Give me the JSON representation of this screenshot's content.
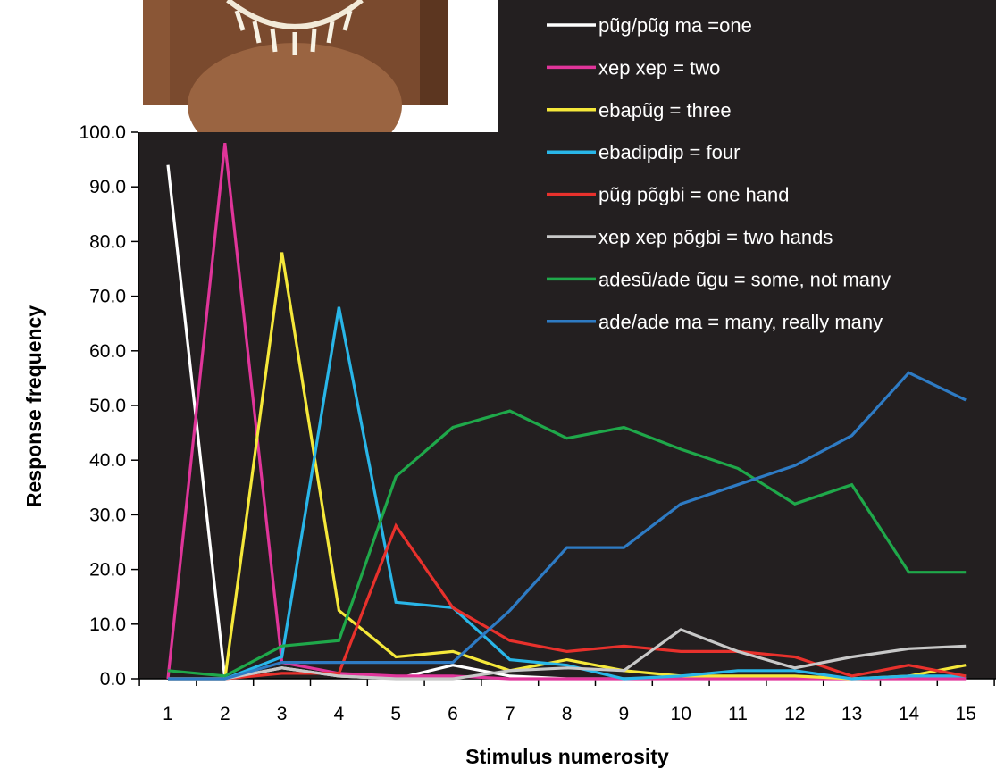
{
  "photo": {
    "description_icon": "photo-of-person-with-necklace-icon"
  },
  "colors": {
    "plot_background": "#231f20",
    "legend_background": "#231f20",
    "page_background": "#ffffff",
    "axis": "#000000"
  },
  "chart_data": {
    "type": "line",
    "title": "",
    "xlabel": "Stimulus numerosity",
    "ylabel": "Response frequency",
    "x": [
      1,
      2,
      3,
      4,
      5,
      6,
      7,
      8,
      9,
      10,
      11,
      12,
      13,
      14,
      15
    ],
    "x_tick_labels": [
      "1",
      "2",
      "3",
      "4",
      "5",
      "6",
      "7",
      "8",
      "9",
      "10",
      "11",
      "12",
      "13",
      "14",
      "15"
    ],
    "ylim": [
      0,
      100
    ],
    "y_ticks": [
      0,
      10,
      20,
      30,
      40,
      50,
      60,
      70,
      80,
      90,
      100
    ],
    "y_tick_labels": [
      "0.0",
      "10.0",
      "20.0",
      "30.0",
      "40.0",
      "50.0",
      "60.0",
      "70.0",
      "80.0",
      "90.0",
      "100.0"
    ],
    "grid": false,
    "legend_position": "top-right",
    "series": [
      {
        "name": "pũg/pũg ma =one",
        "color": "#ffffff",
        "values": [
          94,
          0,
          2,
          0.5,
          0,
          2.5,
          0.5,
          0,
          0,
          0,
          0,
          0,
          0,
          0,
          0
        ]
      },
      {
        "name": "xep xep = two",
        "color": "#e0359a",
        "values": [
          0,
          98,
          3,
          1,
          0.5,
          0.5,
          0,
          0,
          0,
          0,
          0,
          0,
          0,
          0,
          0
        ]
      },
      {
        "name": "ebapũg = three",
        "color": "#f5e83a",
        "values": [
          0,
          0,
          78,
          12.5,
          4,
          5,
          1.5,
          3.5,
          1.5,
          0.5,
          0.5,
          0.5,
          0,
          0.5,
          2.5
        ]
      },
      {
        "name": "ebadipdip = four",
        "color": "#29b6e8",
        "values": [
          0,
          0,
          4,
          68,
          14,
          13,
          3.5,
          2.5,
          0,
          0.5,
          1.5,
          1.5,
          0,
          0.5,
          0.5
        ]
      },
      {
        "name": "pũg põgbi = one hand",
        "color": "#e8312c",
        "values": [
          0,
          0,
          1,
          1,
          28,
          13,
          7,
          5,
          6,
          5,
          5,
          4,
          0.5,
          2.5,
          0.5
        ]
      },
      {
        "name": "xep xep põgbi = two hands",
        "color": "#c8c8c8",
        "values": [
          0,
          0,
          2,
          0.5,
          0,
          0,
          1.5,
          2,
          1.5,
          9,
          5,
          2,
          4,
          5.5,
          6
        ]
      },
      {
        "name": "adesũ/ade ũgu = some, not many",
        "color": "#1fa84a",
        "values": [
          1.5,
          0.5,
          6,
          7,
          37,
          46,
          49,
          44,
          46,
          42,
          38.5,
          32,
          35.5,
          19.5,
          19.5
        ]
      },
      {
        "name": "ade/ade ma = many, really many",
        "color": "#2e7bc4",
        "values": [
          0,
          0,
          3,
          3,
          3,
          3,
          12.5,
          24,
          24,
          32,
          35.5,
          39,
          44.5,
          56,
          51
        ]
      }
    ]
  }
}
